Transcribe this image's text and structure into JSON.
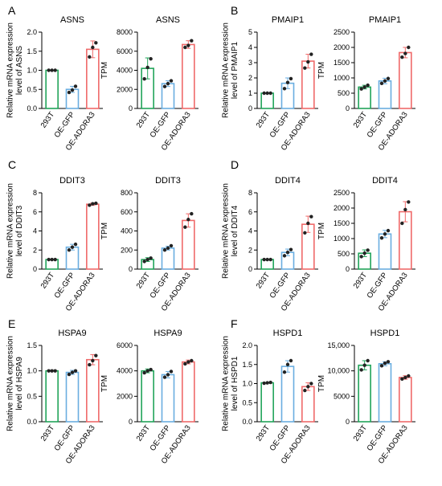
{
  "colors": {
    "293T": "#22a45a",
    "OE-GFP": "#6aaee0",
    "OE-ADORA3": "#ef6a6a",
    "axis": "#000000",
    "point": "#222222"
  },
  "chart_data": [
    {
      "panel": "A",
      "type": "bar",
      "title": "ASNS",
      "ylabel": "Relative mRNA expression level of ASNS",
      "categories": [
        "293T",
        "OE-GFP",
        "OE-ADORA3"
      ],
      "values": [
        1.0,
        0.5,
        1.55
      ],
      "errors": [
        0.0,
        0.08,
        0.22
      ],
      "points": [
        [
          1.0,
          1.0,
          1.0
        ],
        [
          0.42,
          0.48,
          0.58
        ],
        [
          1.35,
          1.6,
          1.72
        ]
      ],
      "ylim": [
        0,
        2.0
      ],
      "yticks": [
        "0.0",
        "0.5",
        "1.0",
        "1.5",
        "2.0"
      ]
    },
    {
      "panel": "",
      "type": "bar",
      "title": "ASNS",
      "ylabel": "TPM",
      "categories": [
        "293T",
        "OE-GFP",
        "OE-ADORA3"
      ],
      "values": [
        4200,
        2600,
        6700
      ],
      "errors": [
        1100,
        300,
        400
      ],
      "points": [
        [
          3100,
          4300,
          5200
        ],
        [
          2300,
          2600,
          2900
        ],
        [
          6400,
          6600,
          7100
        ]
      ],
      "ylim": [
        0,
        8000
      ],
      "yticks": [
        "0",
        "2000",
        "4000",
        "6000",
        "8000"
      ]
    },
    {
      "panel": "B",
      "type": "bar",
      "title": "PMAIP1",
      "ylabel": "Relative mRNA expression level of PMAIP1",
      "categories": [
        "293T",
        "OE-GFP",
        "OE-ADORA3"
      ],
      "values": [
        1.0,
        1.65,
        3.1
      ],
      "errors": [
        0.0,
        0.35,
        0.45
      ],
      "points": [
        [
          1.0,
          1.0,
          1.0
        ],
        [
          1.3,
          1.7,
          1.95
        ],
        [
          2.65,
          3.05,
          3.55
        ]
      ],
      "ylim": [
        0,
        5
      ],
      "yticks": [
        "0",
        "1",
        "2",
        "3",
        "4",
        "5"
      ]
    },
    {
      "panel": "",
      "type": "bar",
      "title": "PMAIP1",
      "ylabel": "TPM",
      "categories": [
        "293T",
        "OE-GFP",
        "OE-ADORA3"
      ],
      "values": [
        700,
        900,
        1830
      ],
      "errors": [
        60,
        90,
        170
      ],
      "points": [
        [
          640,
          700,
          760
        ],
        [
          820,
          900,
          980
        ],
        [
          1680,
          1800,
          2000
        ]
      ],
      "ylim": [
        0,
        2500
      ],
      "yticks": [
        "0",
        "500",
        "1000",
        "1500",
        "2000",
        "2500"
      ]
    },
    {
      "panel": "C",
      "type": "bar",
      "title": "DDIT3",
      "ylabel": "Relative mRNA expression level of DDIT3",
      "categories": [
        "293T",
        "OE-GFP",
        "OE-ADORA3"
      ],
      "values": [
        1.0,
        2.3,
        6.8
      ],
      "errors": [
        0.0,
        0.3,
        0.12
      ],
      "points": [
        [
          1.0,
          1.0,
          1.0
        ],
        [
          2.0,
          2.3,
          2.6
        ],
        [
          6.7,
          6.85,
          6.9
        ]
      ],
      "ylim": [
        0,
        8
      ],
      "yticks": [
        "0",
        "2",
        "4",
        "6",
        "8"
      ]
    },
    {
      "panel": "",
      "type": "bar",
      "title": "DDIT3",
      "ylabel": "TPM",
      "categories": [
        "293T",
        "OE-GFP",
        "OE-ADORA3"
      ],
      "values": [
        100,
        220,
        510
      ],
      "errors": [
        20,
        20,
        70
      ],
      "points": [
        [
          80,
          100,
          115
        ],
        [
          200,
          220,
          245
        ],
        [
          440,
          520,
          580
        ]
      ],
      "ylim": [
        0,
        800
      ],
      "yticks": [
        "0",
        "200",
        "400",
        "600",
        "800"
      ]
    },
    {
      "panel": "D",
      "type": "bar",
      "title": "DDIT4",
      "ylabel": "Relative mRNA expression level of DDIT4",
      "categories": [
        "293T",
        "OE-GFP",
        "OE-ADORA3"
      ],
      "values": [
        1.0,
        1.75,
        4.7
      ],
      "errors": [
        0.0,
        0.35,
        0.85
      ],
      "points": [
        [
          1.0,
          1.0,
          1.0
        ],
        [
          1.4,
          1.75,
          2.05
        ],
        [
          3.8,
          4.8,
          5.5
        ]
      ],
      "ylim": [
        0,
        8
      ],
      "yticks": [
        "0",
        "2",
        "4",
        "6",
        "8"
      ]
    },
    {
      "panel": "",
      "type": "bar",
      "title": "DDIT4",
      "ylabel": "TPM",
      "categories": [
        "293T",
        "OE-GFP",
        "OE-ADORA3"
      ],
      "values": [
        520,
        1150,
        1880
      ],
      "errors": [
        110,
        120,
        330
      ],
      "points": [
        [
          410,
          520,
          620
        ],
        [
          1020,
          1150,
          1260
        ],
        [
          1500,
          1950,
          2200
        ]
      ],
      "ylim": [
        0,
        2500
      ],
      "yticks": [
        "0",
        "500",
        "1000",
        "1500",
        "2000",
        "2500"
      ]
    },
    {
      "panel": "E",
      "type": "bar",
      "title": "HSPA9",
      "ylabel": "Relative mRNA expression level of HSPA9",
      "categories": [
        "293T",
        "OE-GFP",
        "OE-ADORA3"
      ],
      "values": [
        1.0,
        0.97,
        1.22
      ],
      "errors": [
        0.0,
        0.04,
        0.1
      ],
      "points": [
        [
          1.0,
          1.0,
          1.0
        ],
        [
          0.93,
          0.97,
          1.0
        ],
        [
          1.12,
          1.2,
          1.3
        ]
      ],
      "ylim": [
        0,
        1.5
      ],
      "yticks": [
        "0.0",
        "0.5",
        "1.0",
        "1.5"
      ]
    },
    {
      "panel": "",
      "type": "bar",
      "title": "HSPA9",
      "ylabel": "TPM",
      "categories": [
        "293T",
        "OE-GFP",
        "OE-ADORA3"
      ],
      "values": [
        4000,
        3700,
        4700
      ],
      "errors": [
        150,
        250,
        150
      ],
      "points": [
        [
          3850,
          4000,
          4100
        ],
        [
          3500,
          3700,
          3950
        ],
        [
          4550,
          4700,
          4800
        ]
      ],
      "ylim": [
        0,
        6000
      ],
      "yticks": [
        "0",
        "2000",
        "4000",
        "6000"
      ]
    },
    {
      "panel": "F",
      "type": "bar",
      "title": "HSPD1",
      "ylabel": "Relative mRNA expression level of HSPD1",
      "categories": [
        "293T",
        "OE-GFP",
        "OE-ADORA3"
      ],
      "values": [
        1.02,
        1.45,
        0.92
      ],
      "errors": [
        0.0,
        0.15,
        0.1
      ],
      "points": [
        [
          1.01,
          1.02,
          1.03
        ],
        [
          1.3,
          1.5,
          1.6
        ],
        [
          0.82,
          0.92,
          1.0
        ]
      ],
      "ylim": [
        0,
        2.0
      ],
      "yticks": [
        "0.0",
        "0.5",
        "1.0",
        "1.5",
        "2.0"
      ]
    },
    {
      "panel": "",
      "type": "bar",
      "title": "HSPD1",
      "ylabel": "TPM",
      "categories": [
        "293T",
        "OE-GFP",
        "OE-ADORA3"
      ],
      "values": [
        11100,
        11400,
        8700
      ],
      "errors": [
        900,
        400,
        350
      ],
      "points": [
        [
          10200,
          11100,
          12000
        ],
        [
          11000,
          11500,
          11800
        ],
        [
          8400,
          8700,
          9000
        ]
      ],
      "ylim": [
        0,
        15000
      ],
      "yticks": [
        "0",
        "5000",
        "10,000",
        "15,000"
      ]
    }
  ]
}
